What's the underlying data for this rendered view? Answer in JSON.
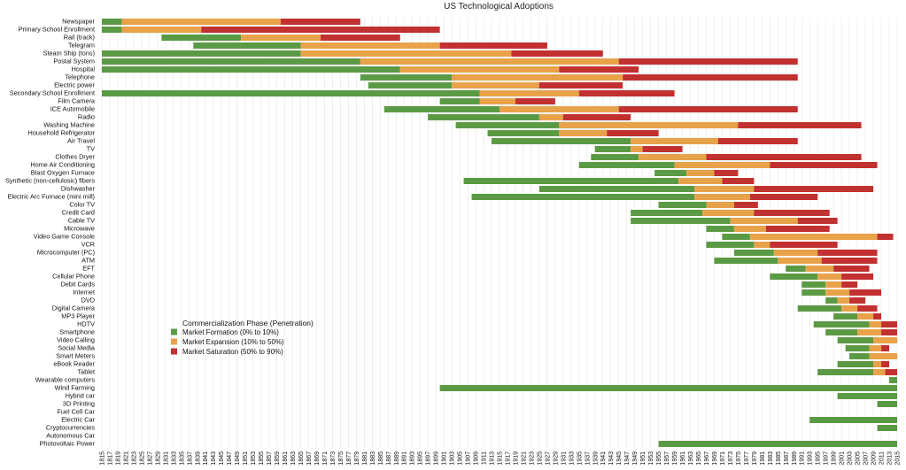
{
  "chart_data": {
    "type": "bar",
    "subtype": "stacked-horizontal-timeline",
    "title": "US Technological Adoptions",
    "xlabel": "",
    "ylabel": "",
    "xlim": [
      1815,
      2015
    ],
    "grid": true,
    "legend": {
      "title": "Commercialization Phase (Penetration)",
      "placement": "bottom-left",
      "entries": [
        {
          "key": "formation",
          "name": "Market Formation (0% to 10%)",
          "color": "#5b9a45"
        },
        {
          "key": "expansion",
          "name": "Market Expansion (10% to 50%)",
          "color": "#e8a24a"
        },
        {
          "key": "saturation",
          "name": "Market Saturation (50% to 90%)",
          "color": "#c1312f"
        }
      ]
    },
    "series": [
      {
        "name": "Market Formation (0% to 10%)"
      },
      {
        "name": "Market Expansion (10% to 50%)"
      },
      {
        "name": "Market Saturation (50% to 90%)"
      }
    ],
    "xticks": [
      1815,
      1817,
      1819,
      1821,
      1823,
      1825,
      1827,
      1829,
      1831,
      1833,
      1835,
      1837,
      1839,
      1841,
      1843,
      1845,
      1847,
      1849,
      1851,
      1853,
      1855,
      1857,
      1859,
      1861,
      1863,
      1865,
      1867,
      1869,
      1871,
      1873,
      1875,
      1877,
      1879,
      1881,
      1883,
      1885,
      1887,
      1889,
      1891,
      1893,
      1895,
      1897,
      1899,
      1901,
      1903,
      1905,
      1907,
      1909,
      1911,
      1913,
      1915,
      1917,
      1919,
      1921,
      1923,
      1925,
      1927,
      1929,
      1931,
      1933,
      1935,
      1937,
      1939,
      1941,
      1943,
      1945,
      1947,
      1949,
      1951,
      1953,
      1955,
      1957,
      1959,
      1961,
      1963,
      1965,
      1967,
      1969,
      1971,
      1973,
      1975,
      1977,
      1979,
      1981,
      1983,
      1985,
      1987,
      1989,
      1991,
      1993,
      1995,
      1997,
      1999,
      2001,
      2003,
      2005,
      2007,
      2009,
      2011,
      2013,
      2015
    ],
    "technologies": [
      {
        "name": "Newspaper",
        "formation": [
          1815,
          1820
        ],
        "expansion": [
          1820,
          1860
        ],
        "saturation": [
          1860,
          1880
        ]
      },
      {
        "name": "Primary School Enrollment",
        "formation": [
          1815,
          1820
        ],
        "expansion": [
          1820,
          1840
        ],
        "saturation": [
          1840,
          1900
        ]
      },
      {
        "name": "Rail (track)",
        "formation": [
          1830,
          1850
        ],
        "expansion": [
          1850,
          1870
        ],
        "saturation": [
          1870,
          1890
        ]
      },
      {
        "name": "Telegram",
        "formation": [
          1838,
          1865
        ],
        "expansion": [
          1865,
          1900
        ],
        "saturation": [
          1900,
          1927
        ]
      },
      {
        "name": "Steam Ship (tons)",
        "formation": [
          1815,
          1865
        ],
        "expansion": [
          1865,
          1918
        ],
        "saturation": [
          1918,
          1941
        ]
      },
      {
        "name": "Postal System",
        "formation": [
          1815,
          1880
        ],
        "expansion": [
          1880,
          1945
        ],
        "saturation": [
          1945,
          1990
        ]
      },
      {
        "name": "Hospital",
        "formation": [
          1815,
          1890
        ],
        "expansion": [
          1890,
          1930
        ],
        "saturation": [
          1930,
          1950
        ]
      },
      {
        "name": "Telephone",
        "formation": [
          1880,
          1903
        ],
        "expansion": [
          1903,
          1946
        ],
        "saturation": [
          1946,
          1990
        ]
      },
      {
        "name": "Electric power",
        "formation": [
          1882,
          1903
        ],
        "expansion": [
          1903,
          1925
        ],
        "saturation": [
          1925,
          1946
        ]
      },
      {
        "name": "Secondary School Enrollment",
        "formation": [
          1815,
          1910
        ],
        "expansion": [
          1910,
          1935
        ],
        "saturation": [
          1935,
          1959
        ]
      },
      {
        "name": "Film Camera",
        "formation": [
          1900,
          1910
        ],
        "expansion": [
          1910,
          1919
        ],
        "saturation": [
          1919,
          1929
        ]
      },
      {
        "name": "ICE Automobile",
        "formation": [
          1886,
          1915
        ],
        "expansion": [
          1915,
          1945
        ],
        "saturation": [
          1945,
          1990
        ]
      },
      {
        "name": "Radio",
        "formation": [
          1897,
          1925
        ],
        "expansion": [
          1925,
          1931
        ],
        "saturation": [
          1931,
          1948
        ]
      },
      {
        "name": "Washing Machine",
        "formation": [
          1904,
          1930
        ],
        "expansion": [
          1930,
          1975
        ],
        "saturation": [
          1975,
          2006
        ]
      },
      {
        "name": "Household Refrigerator",
        "formation": [
          1912,
          1930
        ],
        "expansion": [
          1930,
          1942
        ],
        "saturation": [
          1942,
          1955
        ]
      },
      {
        "name": "Air Travel",
        "formation": [
          1913,
          1948
        ],
        "expansion": [
          1948,
          1970
        ],
        "saturation": [
          1970,
          1990
        ]
      },
      {
        "name": "TV",
        "formation": [
          1939,
          1948
        ],
        "expansion": [
          1948,
          1951
        ],
        "saturation": [
          1951,
          1961
        ]
      },
      {
        "name": "Clothes Dryer",
        "formation": [
          1938,
          1950
        ],
        "expansion": [
          1950,
          1967
        ],
        "saturation": [
          1967,
          2006
        ]
      },
      {
        "name": "Home Air Conditioning",
        "formation": [
          1935,
          1959
        ],
        "expansion": [
          1959,
          1983
        ],
        "saturation": [
          1983,
          2010
        ]
      },
      {
        "name": "Blast Oxygen Furnace",
        "formation": [
          1954,
          1962
        ],
        "expansion": [
          1962,
          1969
        ],
        "saturation": [
          1969,
          1975
        ]
      },
      {
        "name": "Synthetic (non-cellulosic) fibers",
        "formation": [
          1906,
          1960
        ],
        "expansion": [
          1960,
          1971
        ],
        "saturation": [
          1971,
          1979
        ]
      },
      {
        "name": "Dishwasher",
        "formation": [
          1925,
          1964
        ],
        "expansion": [
          1964,
          1979
        ],
        "saturation": [
          1979,
          2009
        ]
      },
      {
        "name": "Electric Arc Furnace (mini mill)",
        "formation": [
          1908,
          1964
        ],
        "expansion": [
          1964,
          1978
        ],
        "saturation": [
          1978,
          1995
        ]
      },
      {
        "name": "Color TV",
        "formation": [
          1955,
          1967
        ],
        "expansion": [
          1967,
          1974
        ],
        "saturation": [
          1974,
          1980
        ]
      },
      {
        "name": "Credit Card",
        "formation": [
          1948,
          1966
        ],
        "expansion": [
          1966,
          1979
        ],
        "saturation": [
          1979,
          1998
        ]
      },
      {
        "name": "Cable TV",
        "formation": [
          1948,
          1973
        ],
        "expansion": [
          1973,
          1990
        ],
        "saturation": [
          1990,
          2000
        ]
      },
      {
        "name": "Microwave",
        "formation": [
          1967,
          1974
        ],
        "expansion": [
          1974,
          1982
        ],
        "saturation": [
          1982,
          1998
        ]
      },
      {
        "name": "Video Game Console",
        "formation": [
          1971,
          1978
        ],
        "expansion": [
          1978,
          2010
        ],
        "saturation": [
          2010,
          2014
        ]
      },
      {
        "name": "VCR",
        "formation": [
          1967,
          1979
        ],
        "expansion": [
          1979,
          1983
        ],
        "saturation": [
          1983,
          2000
        ]
      },
      {
        "name": "Microcomputer (PC)",
        "formation": [
          1974,
          1984
        ],
        "expansion": [
          1984,
          1995
        ],
        "saturation": [
          1995,
          2010
        ]
      },
      {
        "name": "ATM",
        "formation": [
          1969,
          1985
        ],
        "expansion": [
          1985,
          1996
        ],
        "saturation": [
          1996,
          2010
        ]
      },
      {
        "name": "EFT",
        "formation": [
          1987,
          1992
        ],
        "expansion": [
          1992,
          1999
        ],
        "saturation": [
          1999,
          2008
        ]
      },
      {
        "name": "Cellular Phone",
        "formation": [
          1983,
          1995
        ],
        "expansion": [
          1995,
          2001
        ],
        "saturation": [
          2001,
          2009
        ]
      },
      {
        "name": "Debit Cards",
        "formation": [
          1991,
          1997
        ],
        "expansion": [
          1997,
          2001
        ],
        "saturation": [
          2001,
          2005
        ]
      },
      {
        "name": "Internet",
        "formation": [
          1991,
          1997
        ],
        "expansion": [
          1997,
          2003
        ],
        "saturation": [
          2003,
          2011
        ]
      },
      {
        "name": "DVD",
        "formation": [
          1997,
          2000
        ],
        "expansion": [
          2000,
          2003
        ],
        "saturation": [
          2003,
          2007
        ]
      },
      {
        "name": "Digital Camera",
        "formation": [
          1990,
          2001
        ],
        "expansion": [
          2001,
          2005
        ],
        "saturation": [
          2005,
          2010
        ]
      },
      {
        "name": "MP3 Player",
        "formation": [
          1999,
          2005
        ],
        "expansion": [
          2005,
          2009
        ],
        "saturation": [
          2009,
          2011
        ]
      },
      {
        "name": "HDTV",
        "formation": [
          1994,
          2008
        ],
        "expansion": [
          2008,
          2011
        ],
        "saturation": [
          2011,
          2015
        ]
      },
      {
        "name": "Smartphone",
        "formation": [
          1997,
          2005
        ],
        "expansion": [
          2005,
          2011
        ],
        "saturation": [
          2011,
          2015
        ]
      },
      {
        "name": "Video Calling",
        "formation": [
          2000,
          2009
        ],
        "expansion": [
          2009,
          2015
        ],
        "saturation": [
          2015,
          2015
        ]
      },
      {
        "name": "Social Media",
        "formation": [
          2002,
          2008
        ],
        "expansion": [
          2008,
          2011
        ],
        "saturation": [
          2011,
          2013
        ]
      },
      {
        "name": "Smart Meters",
        "formation": [
          2003,
          2008
        ],
        "expansion": [
          2008,
          2015
        ],
        "saturation": [
          2015,
          2015
        ]
      },
      {
        "name": "eBook Reader",
        "formation": [
          2000,
          2009
        ],
        "expansion": [
          2009,
          2011
        ],
        "saturation": [
          2011,
          2013
        ]
      },
      {
        "name": "Tablet",
        "formation": [
          1995,
          2009
        ],
        "expansion": [
          2009,
          2012
        ],
        "saturation": [
          2012,
          2015
        ]
      },
      {
        "name": "Wearable computers",
        "formation": [
          2013,
          2015
        ],
        "expansion": null,
        "saturation": null
      },
      {
        "name": "Wind Farming",
        "formation": [
          1900,
          2015
        ],
        "expansion": null,
        "saturation": null
      },
      {
        "name": "Hybrid car",
        "formation": [
          2000,
          2015
        ],
        "expansion": null,
        "saturation": null
      },
      {
        "name": "3D Printing",
        "formation": [
          2010,
          2015
        ],
        "expansion": null,
        "saturation": null
      },
      {
        "name": "Fuel Cell Car",
        "formation": null,
        "expansion": null,
        "saturation": null
      },
      {
        "name": "Electric Car",
        "formation": [
          1993,
          2015
        ],
        "expansion": null,
        "saturation": null
      },
      {
        "name": "Cryptocurrencies",
        "formation": [
          2010,
          2015
        ],
        "expansion": null,
        "saturation": null
      },
      {
        "name": "Autonomous Car",
        "formation": null,
        "expansion": null,
        "saturation": null
      },
      {
        "name": "Photovoltaic Power",
        "formation": [
          1955,
          2015
        ],
        "expansion": null,
        "saturation": null
      }
    ]
  }
}
